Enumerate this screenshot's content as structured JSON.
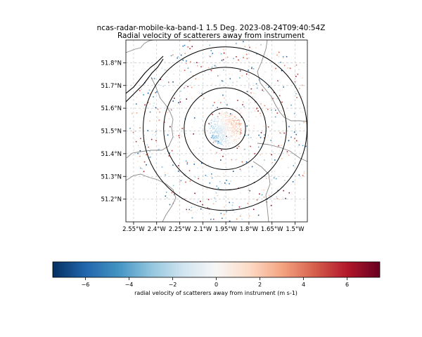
{
  "title": {
    "line1": "ncas-radar-mobile-ka-band-1 1.5 Deg. 2023-08-24T09:40:54Z",
    "line2": "Radial velocity of scatterers away from instrument"
  },
  "map": {
    "lon_range": [
      -2.6,
      -1.42
    ],
    "lat_range": [
      51.1,
      51.9
    ],
    "x_ticks": [
      {
        "value": -2.55,
        "label": "2.55°W"
      },
      {
        "value": -2.4,
        "label": "2.4°W"
      },
      {
        "value": -2.25,
        "label": "2.25°W"
      },
      {
        "value": -2.1,
        "label": "2.1°W"
      },
      {
        "value": -1.95,
        "label": "1.95°W"
      },
      {
        "value": -1.8,
        "label": "1.8°W"
      },
      {
        "value": -1.65,
        "label": "1.65°W"
      },
      {
        "value": -1.5,
        "label": "1.5°W"
      }
    ],
    "y_ticks": [
      {
        "value": 51.2,
        "label": "51.2°N"
      },
      {
        "value": 51.3,
        "label": "51.3°N"
      },
      {
        "value": 51.4,
        "label": "51.4°N"
      },
      {
        "value": 51.5,
        "label": "51.5°N"
      },
      {
        "value": 51.6,
        "label": "51.6°N"
      },
      {
        "value": 51.7,
        "label": "51.7°N"
      },
      {
        "value": 51.8,
        "label": "51.8°N"
      }
    ],
    "gridlines": true,
    "radar_center": {
      "lon": -1.955,
      "lat": 51.51
    },
    "range_rings_km": [
      10,
      20,
      30,
      40
    ],
    "colors": {
      "coast": "#000000",
      "borders": "#8a8a8a",
      "grid": "#c8c8c8",
      "rings": "#000000"
    }
  },
  "colorbar": {
    "vmin": -7.5,
    "vmax": 7.5,
    "ticks": [
      {
        "value": -6,
        "label": "−6"
      },
      {
        "value": -4,
        "label": "−4"
      },
      {
        "value": -2,
        "label": "−2"
      },
      {
        "value": 0,
        "label": "0"
      },
      {
        "value": 2,
        "label": "2"
      },
      {
        "value": 4,
        "label": "4"
      },
      {
        "value": 6,
        "label": "6"
      }
    ],
    "label": "radial velocity of scatterers away from instrument (m s-1)",
    "colormap": "RdBu_r",
    "stops": [
      "#053061",
      "#2166ac",
      "#4393c3",
      "#92c5de",
      "#d1e5f0",
      "#f7f7f7",
      "#fddbc7",
      "#f4a582",
      "#d6604d",
      "#b2182b",
      "#67001f"
    ]
  }
}
